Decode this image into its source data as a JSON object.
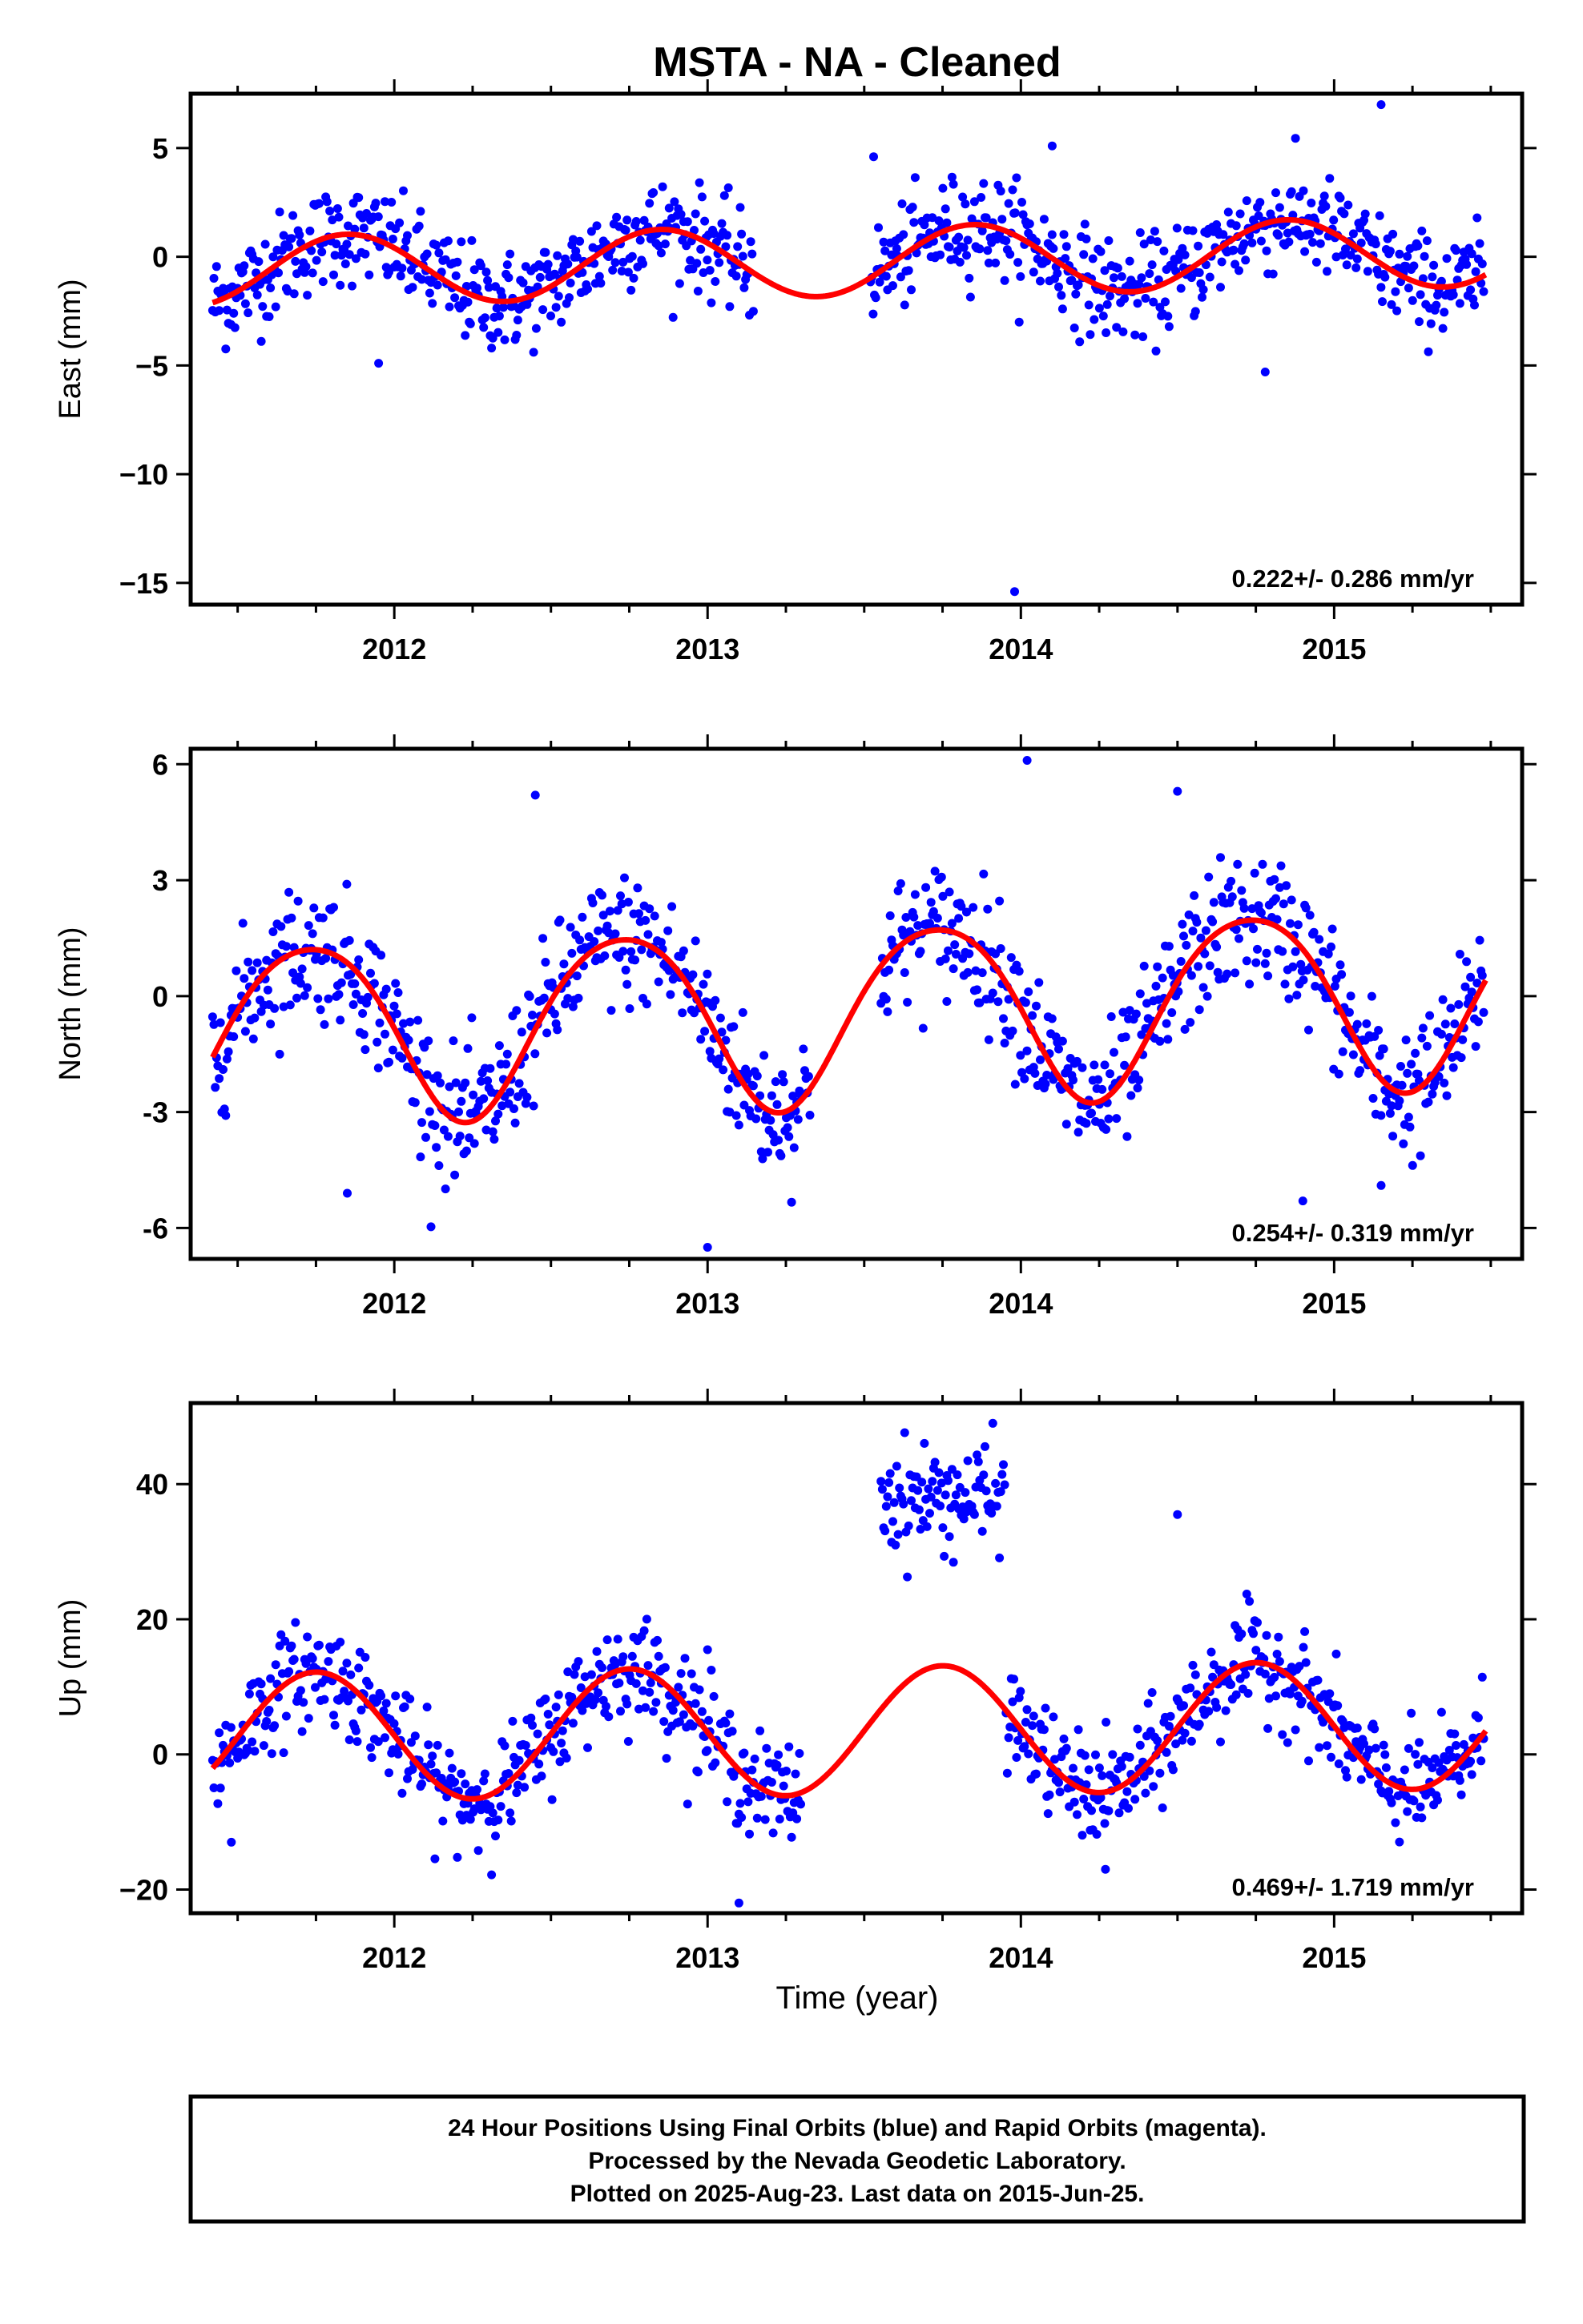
{
  "title": "MSTA  - NA - Cleaned",
  "xlabel": "Time (year)",
  "footer": {
    "lines": [
      "24 Hour Positions Using Final Orbits (blue) and Rapid Orbits (magenta).",
      "Processed by the Nevada Geodetic Laboratory.",
      "Plotted on 2025-Aug-23. Last data on 2015-Jun-25."
    ]
  },
  "colors": {
    "points": "#0000ff",
    "model": "#ff0000",
    "frame": "#000000"
  },
  "chart_data": [
    {
      "type": "scatter",
      "component": "east",
      "ylabel": "East (mm)",
      "rate_label": "0.222+/- 0.286 mm/yr",
      "xlim": [
        2011.35,
        2015.6
      ],
      "ylim": [
        -16.0,
        7.5
      ],
      "xticks": [
        2012,
        2013,
        2014,
        2015
      ],
      "xtick_labels": [
        "2012",
        "2013",
        "2014",
        "2015"
      ],
      "yticks": [
        5,
        0,
        -5,
        -10,
        -15
      ],
      "ytick_labels": [
        "5",
        "0",
        "−5",
        "−10",
        "−15"
      ],
      "model": {
        "annual_amp": 1.6,
        "annual_phase": 2011.6,
        "semi_amp": 0.0,
        "semi_phase": 2011.6,
        "rate": 0.222,
        "offset": -0.2
      },
      "noise": 1.15,
      "gaps": [
        [
          2013.15,
          2013.52
        ]
      ],
      "outliers": [
        [
          2013.98,
          -15.4
        ],
        [
          2014.78,
          -5.3
        ],
        [
          2015.15,
          7.0
        ],
        [
          2011.95,
          -4.9
        ],
        [
          2013.53,
          4.6
        ],
        [
          2014.1,
          5.1
        ]
      ]
    },
    {
      "type": "scatter",
      "component": "north",
      "ylabel": "North (mm)",
      "rate_label": "0.254+/- 0.319 mm/yr",
      "xlim": [
        2011.35,
        2015.6
      ],
      "ylim": [
        -6.8,
        6.4
      ],
      "xticks": [
        2012,
        2013,
        2014,
        2015
      ],
      "xtick_labels": [
        "2012",
        "2013",
        "2014",
        "2015"
      ],
      "yticks": [
        6,
        3,
        0,
        -3,
        -6
      ],
      "ytick_labels": [
        "6",
        "3",
        "0",
        "-3",
        "-6"
      ],
      "model": {
        "annual_amp": 2.3,
        "annual_phase": 2011.48,
        "semi_amp": 0.25,
        "semi_phase": 2011.35,
        "rate": 0.254,
        "offset": -0.4
      },
      "noise": 0.85,
      "gaps": [
        [
          2013.33,
          2013.55
        ]
      ],
      "outliers": [
        [
          2014.02,
          6.1
        ],
        [
          2013.0,
          -6.5
        ],
        [
          2012.45,
          5.2
        ],
        [
          2011.85,
          -5.1
        ],
        [
          2014.9,
          -5.3
        ],
        [
          2015.15,
          -4.9
        ],
        [
          2014.5,
          5.3
        ]
      ]
    },
    {
      "type": "scatter",
      "component": "up",
      "ylabel": "Up (mm)",
      "rate_label": "0.469+/- 1.719 mm/yr",
      "xlim": [
        2011.35,
        2015.6
      ],
      "ylim": [
        -23.5,
        52.0
      ],
      "xticks": [
        2012,
        2013,
        2014,
        2015
      ],
      "xtick_labels": [
        "2012",
        "2013",
        "2014",
        "2015"
      ],
      "yticks": [
        40,
        20,
        0,
        -20
      ],
      "ytick_labels": [
        "40",
        "20",
        "0",
        "−20"
      ],
      "model": {
        "annual_amp": 9.5,
        "annual_phase": 2011.5,
        "semi_amp": 0.0,
        "semi_phase": 2011.5,
        "rate": 0.469,
        "offset": 3.5
      },
      "noise": 3.8,
      "gaps": [
        [
          2013.3,
          2013.55
        ]
      ],
      "cluster": {
        "x_range": [
          2013.55,
          2013.95
        ],
        "mean": 38,
        "spread": 4
      },
      "outliers": [
        [
          2014.5,
          35.5
        ],
        [
          2013.1,
          -22
        ],
        [
          2011.48,
          -13
        ],
        [
          2013.0,
          15.5
        ],
        [
          2014.27,
          -17
        ]
      ]
    }
  ]
}
